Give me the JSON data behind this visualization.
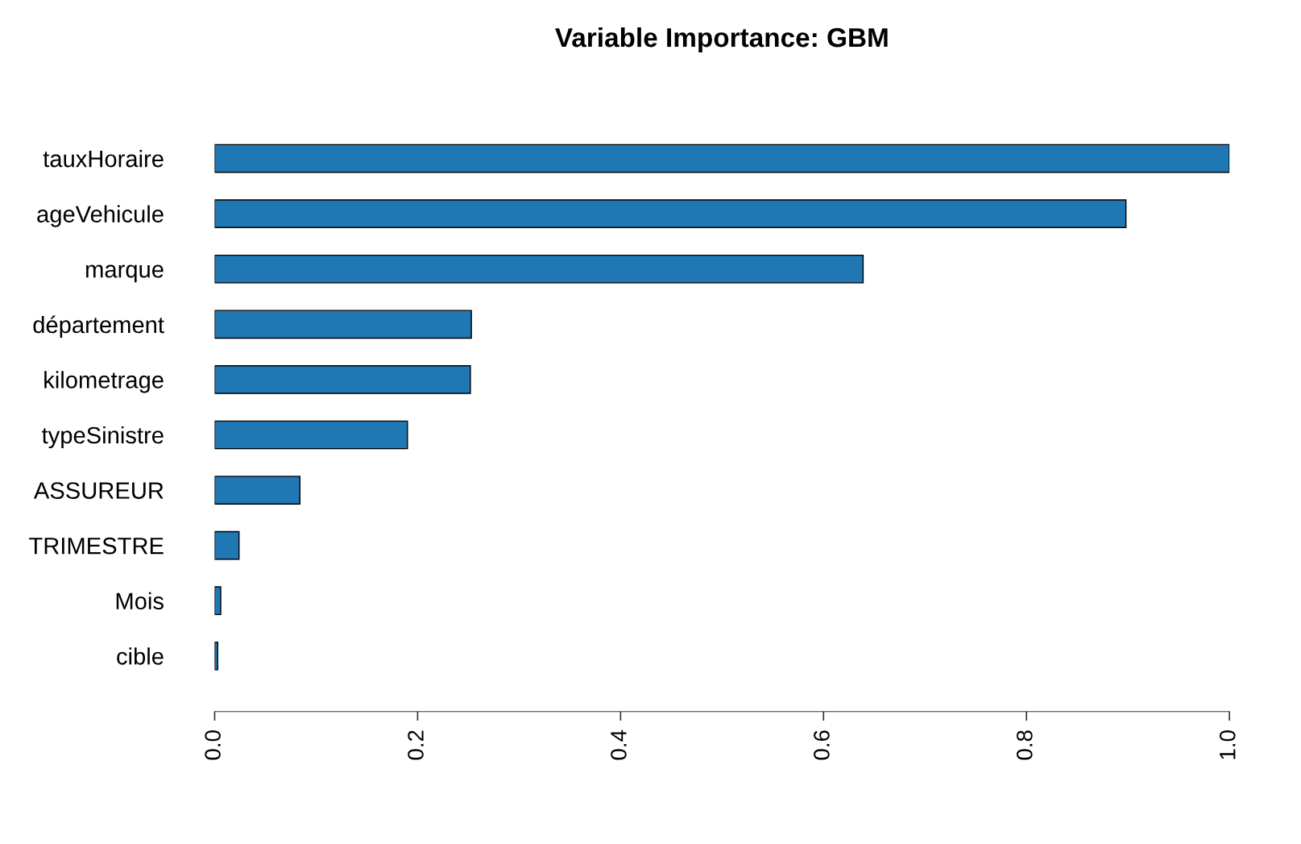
{
  "chart_data": {
    "type": "bar",
    "orientation": "horizontal",
    "title": "Variable Importance: GBM",
    "categories": [
      "tauxHoraire",
      "ageVehicule",
      "marque",
      "département",
      "kilometrage",
      "typeSinistre",
      "ASSUREUR",
      "TRIMESTRE",
      "Mois",
      "cible"
    ],
    "values": [
      1.0,
      0.898,
      0.639,
      0.253,
      0.252,
      0.19,
      0.084,
      0.024,
      0.006,
      0.003
    ],
    "color": "#1f77b4",
    "xlim": [
      0,
      1
    ],
    "xticks": [
      {
        "value": 0,
        "label": "0.0"
      },
      {
        "value": 0.2,
        "label": "0.2"
      },
      {
        "value": 0.4,
        "label": "0.4"
      },
      {
        "value": 0.6,
        "label": "0.6"
      },
      {
        "value": 0.8,
        "label": "0.8"
      },
      {
        "value": 1,
        "label": "1.0"
      }
    ],
    "grid": false,
    "legend": false
  }
}
